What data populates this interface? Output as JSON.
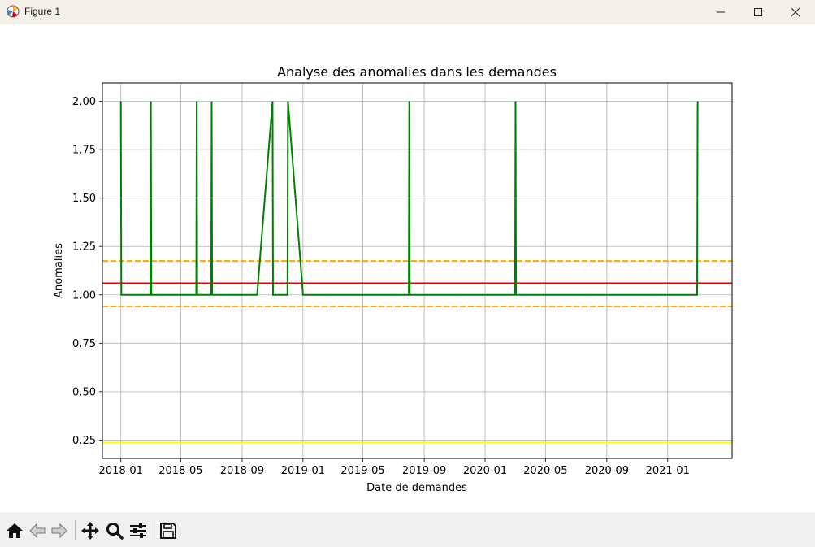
{
  "window": {
    "title": "Figure 1"
  },
  "toolbar": {
    "buttons": [
      "home-icon",
      "back-icon",
      "forward-icon",
      "pan-icon",
      "zoom-icon",
      "configure-icon",
      "save-icon"
    ]
  },
  "chart_data": {
    "type": "line",
    "title": "Analyse des anomalies dans les demandes",
    "xlabel": "Date de demandes",
    "ylabel": "Anomalies",
    "x_ticks": [
      "2018-01",
      "2018-05",
      "2018-09",
      "2019-01",
      "2019-05",
      "2019-09",
      "2020-01",
      "2020-05",
      "2020-09",
      "2021-01"
    ],
    "y_ticks": [
      "0.25",
      "0.50",
      "0.75",
      "1.00",
      "1.25",
      "1.50",
      "1.75",
      "2.00"
    ],
    "xlim": [
      "2017-11-25",
      "2021-05-10"
    ],
    "ylim": [
      0.155,
      2.095
    ],
    "grid": true,
    "series": [
      {
        "color": "#008000",
        "points": [
          [
            "2018-01-01",
            2
          ],
          [
            "2018-01-02",
            1
          ],
          [
            "2018-03-01",
            1
          ],
          [
            "2018-03-02",
            2
          ],
          [
            "2018-03-03",
            1
          ],
          [
            "2018-06-01",
            1
          ],
          [
            "2018-06-02",
            2
          ],
          [
            "2018-06-03",
            1
          ],
          [
            "2018-07-01",
            1
          ],
          [
            "2018-07-02",
            2
          ],
          [
            "2018-07-03",
            1
          ],
          [
            "2018-10-01",
            1
          ],
          [
            "2018-11-01",
            2
          ],
          [
            "2018-11-02",
            1
          ],
          [
            "2018-12-01",
            1
          ],
          [
            "2018-12-02",
            2
          ],
          [
            "2019-01-01",
            1
          ],
          [
            "2019-08-01",
            1
          ],
          [
            "2019-08-02",
            2
          ],
          [
            "2019-08-03",
            1
          ],
          [
            "2019-12-01",
            1
          ],
          [
            "2020-01-01",
            1
          ],
          [
            "2020-03-01",
            1
          ],
          [
            "2020-03-02",
            2
          ],
          [
            "2020-03-03",
            1
          ],
          [
            "2021-03-01",
            1
          ],
          [
            "2021-03-02",
            2
          ]
        ]
      }
    ],
    "hlines": [
      {
        "y": 1.06,
        "color": "#e00000",
        "style": "solid"
      },
      {
        "y": 1.175,
        "color": "#ffa500",
        "style": "dashed"
      },
      {
        "y": 0.94,
        "color": "#ffa500",
        "style": "dashed"
      },
      {
        "y": 0.237,
        "color": "#ffff00",
        "style": "solid"
      }
    ]
  }
}
